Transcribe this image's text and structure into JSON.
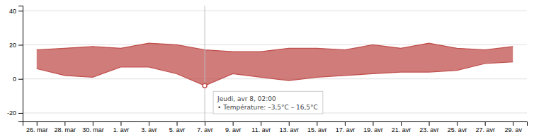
{
  "chart_data": {
    "type": "range_area",
    "categories": [
      "26. mar",
      "28. mar",
      "30. mar",
      "1. avr",
      "3. avr",
      "5. avr",
      "7. avr",
      "9. avr",
      "11. avr",
      "13. avr",
      "15. avr",
      "17. avr",
      "19. avr",
      "21. avr",
      "23. avr",
      "25. avr",
      "27. avr",
      "29. av"
    ],
    "series": [
      {
        "values": [
          17,
          18,
          19,
          18,
          21,
          20,
          17,
          16,
          16,
          18,
          18,
          17,
          20,
          18,
          21,
          18,
          17,
          19
        ]
      },
      {
        "values": [
          6,
          2,
          1,
          7,
          7,
          3,
          -4,
          3,
          1,
          -1,
          1,
          2,
          3,
          4,
          4,
          5,
          9,
          10
        ]
      }
    ],
    "color": "#c0504d",
    "ylim": [
      -25,
      43
    ],
    "yticks": [
      -20,
      0,
      20,
      40
    ],
    "grid": true,
    "annotations": [
      {
        "x": "7. avr",
        "lines": [
          "Jeudi, avr 8, 02:00",
          "• Température:  –3,5°C – 16,5°C"
        ]
      }
    ]
  }
}
